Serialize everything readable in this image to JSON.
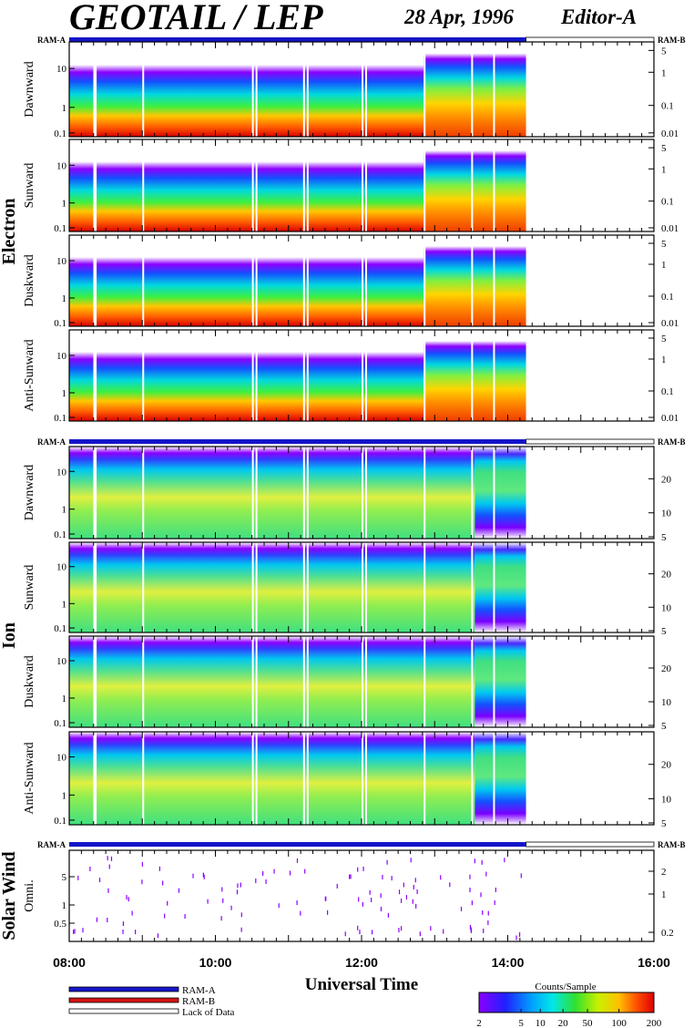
{
  "header": {
    "title": "GEOTAIL / LEP",
    "date": "28 Apr, 1996",
    "editor": "Editor-A"
  },
  "ram_labels": {
    "left": "RAM-A",
    "right": "RAM-B"
  },
  "groups": [
    {
      "name": "Electron",
      "panels": [
        "Dawnward",
        "Sunward",
        "Duskward",
        "Anti-Sunward"
      ]
    },
    {
      "name": "Ion",
      "panels": [
        "Dawnward",
        "Sunward",
        "Duskward",
        "Anti-Sunward"
      ]
    },
    {
      "name": "Solar Wind",
      "panels": [
        "Omni."
      ]
    }
  ],
  "x_axis": {
    "label": "Universal Time",
    "ticks": [
      "08:00",
      "10:00",
      "12:00",
      "14:00",
      "16:00"
    ],
    "range_hours": [
      8,
      16
    ]
  },
  "y_axes": {
    "electron_left": [
      "10",
      "1",
      "0.1"
    ],
    "electron_right": [
      "5",
      "1",
      "0.1",
      "0.01"
    ],
    "ion_left": [
      "10",
      "1",
      "0.1"
    ],
    "ion_right": [
      "20",
      "10",
      "5"
    ],
    "solar_left": [
      "5",
      "1",
      "0.5"
    ],
    "solar_right": [
      "2",
      "1",
      "0.2"
    ]
  },
  "legend": {
    "items": [
      {
        "label": "RAM-A",
        "color": "#1414c8"
      },
      {
        "label": "RAM-B",
        "color": "#d21414"
      },
      {
        "label": "Lack of Data",
        "color": "#ffffff"
      }
    ],
    "colorbar_title": "Counts/Sample",
    "colorbar_ticks": [
      "2",
      "5",
      "10",
      "20",
      "50",
      "100",
      "200"
    ]
  },
  "chart_data": {
    "type": "heatmap",
    "data_end_hour": 14.25,
    "ram_a_end_hour": 14.25,
    "data_gaps_hours": [
      8.33,
      8.35,
      9.0,
      10.5,
      10.55,
      11.2,
      11.25,
      12.0,
      12.05,
      12.85,
      13.5,
      13.8
    ],
    "scale": "log"
  }
}
